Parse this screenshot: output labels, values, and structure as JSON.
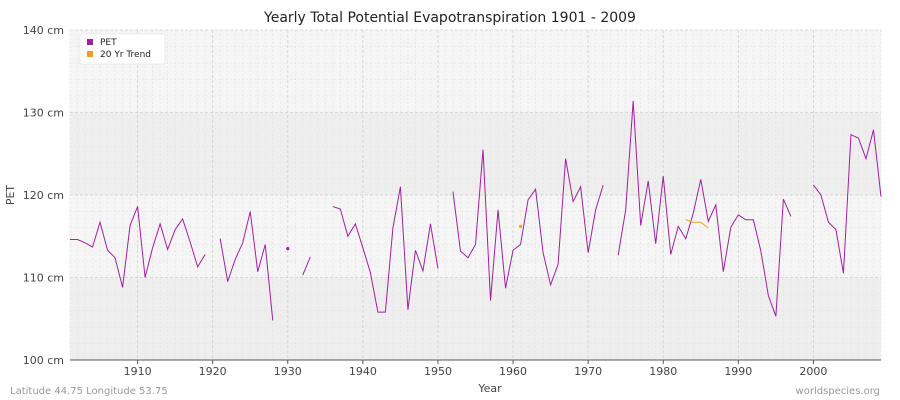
{
  "chart_data": {
    "type": "line",
    "title": "Yearly Total Potential Evapotranspiration 1901 - 2009",
    "xlabel": "Year",
    "ylabel": "PET",
    "xlim": [
      1901,
      2009
    ],
    "ylim": [
      100,
      140
    ],
    "y_unit": "cm",
    "x_ticks": [
      1910,
      1920,
      1930,
      1940,
      1950,
      1960,
      1970,
      1980,
      1990,
      2000
    ],
    "y_ticks": [
      {
        "value": 100,
        "label": "100 cm"
      },
      {
        "value": 110,
        "label": "110 cm"
      },
      {
        "value": 120,
        "label": "120 cm"
      },
      {
        "value": 130,
        "label": "130 cm"
      },
      {
        "value": 140,
        "label": "140 cm"
      }
    ],
    "grid": true,
    "legend_position": "top-left",
    "series": [
      {
        "name": "PET",
        "color": "#a020a0",
        "x": [
          1901,
          1902,
          1903,
          1904,
          1905,
          1906,
          1907,
          1908,
          1909,
          1910,
          1911,
          1912,
          1913,
          1914,
          1915,
          1916,
          1917,
          1918,
          1919,
          1920,
          1921,
          1922,
          1923,
          1924,
          1925,
          1926,
          1927,
          1928,
          1929,
          1930,
          1931,
          1932,
          1933,
          1934,
          1935,
          1936,
          1937,
          1938,
          1939,
          1940,
          1941,
          1942,
          1943,
          1944,
          1945,
          1946,
          1947,
          1948,
          1949,
          1950,
          1951,
          1952,
          1953,
          1954,
          1955,
          1956,
          1957,
          1958,
          1959,
          1960,
          1961,
          1962,
          1963,
          1964,
          1965,
          1966,
          1967,
          1968,
          1969,
          1970,
          1971,
          1972,
          1973,
          1974,
          1975,
          1976,
          1977,
          1978,
          1979,
          1980,
          1981,
          1982,
          1983,
          1984,
          1985,
          1986,
          1987,
          1988,
          1989,
          1990,
          1991,
          1992,
          1993,
          1994,
          1995,
          1996,
          1997,
          1998,
          1999,
          2000,
          2001,
          2002,
          2003,
          2004,
          2005,
          2006,
          2007,
          2008,
          2009
        ],
        "values": [
          114.6,
          114.6,
          114.2,
          113.7,
          116.7,
          113.3,
          112.4,
          108.8,
          116.3,
          118.6,
          110.0,
          113.6,
          116.5,
          113.4,
          115.8,
          117.1,
          114.3,
          111.3,
          112.8,
          null,
          114.7,
          109.5,
          112.2,
          114.2,
          118.0,
          110.7,
          114.0,
          104.8,
          null,
          113.5,
          null,
          110.3,
          112.5,
          null,
          null,
          118.6,
          118.3,
          115.0,
          116.5,
          113.6,
          110.6,
          105.8,
          105.8,
          116.0,
          121.0,
          106.1,
          113.3,
          110.8,
          116.5,
          111.1,
          null,
          120.4,
          113.2,
          112.4,
          114.0,
          125.5,
          107.2,
          118.2,
          108.7,
          113.3,
          114.0,
          119.4,
          120.7,
          113.0,
          109.1,
          111.6,
          124.4,
          119.2,
          121.0,
          113.0,
          118.2,
          121.2,
          null,
          112.7,
          118.2,
          131.4,
          116.3,
          121.7,
          114.1,
          122.3,
          112.8,
          116.2,
          114.7,
          117.8,
          121.9,
          116.8,
          118.8,
          110.7,
          116.1,
          117.6,
          117.0,
          117.0,
          113.2,
          107.8,
          105.3,
          119.5,
          117.4,
          null,
          null,
          121.2,
          120.0,
          116.7,
          115.8,
          110.5,
          127.3,
          126.9,
          124.4,
          127.9,
          119.8
        ]
      },
      {
        "name": "20 Yr Trend",
        "color": "#f0a020",
        "x": [
          1961,
          1983,
          1984,
          1985,
          1986
        ],
        "values": [
          116.2,
          117.0,
          116.7,
          116.7,
          116.0
        ]
      }
    ]
  },
  "footer": {
    "left": "Latitude 44.75 Longitude 53.75",
    "right": "worldspecies.org"
  }
}
